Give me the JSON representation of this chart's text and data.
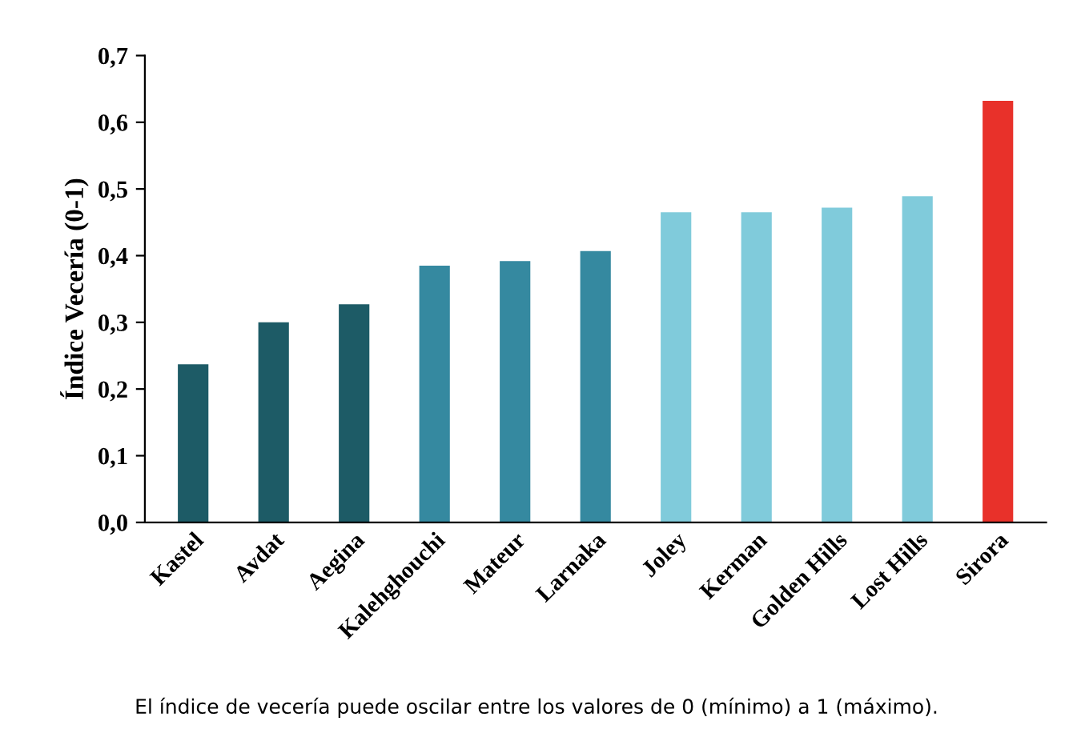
{
  "chart_data": {
    "type": "bar",
    "ylabel": "Índice Vecería (0-1)",
    "categories": [
      "Kastel",
      "Avdat",
      "Aegina",
      "Kalehghouchi",
      "Mateur",
      "Larnaka",
      "Joley",
      "Kerman",
      "Golden Hills",
      "Lost Hills",
      "Sirora"
    ],
    "values": [
      0.237,
      0.3,
      0.327,
      0.385,
      0.392,
      0.407,
      0.465,
      0.465,
      0.472,
      0.489,
      0.632
    ],
    "colors": [
      "#1d5b66",
      "#1d5b66",
      "#1d5b66",
      "#3589a0",
      "#3589a0",
      "#3589a0",
      "#80cbdb",
      "#80cbdb",
      "#80cbdb",
      "#80cbdb",
      "#e8312a"
    ],
    "ylim": [
      0,
      0.7
    ],
    "yticks": [
      {
        "value": 0,
        "label": "0,0"
      },
      {
        "value": 0.1,
        "label": "0,1"
      },
      {
        "value": 0.2,
        "label": "0,2"
      },
      {
        "value": 0.3,
        "label": "0,3"
      },
      {
        "value": 0.4,
        "label": "0,4"
      },
      {
        "value": 0.5,
        "label": "0,5"
      },
      {
        "value": 0.6,
        "label": "0,6"
      },
      {
        "value": 0.7,
        "label": "0,7"
      }
    ],
    "grid": false,
    "annotations": [
      "El índice de vecería puede oscilar entre los valores de 0 (mínimo) a 1 (máximo)."
    ]
  }
}
